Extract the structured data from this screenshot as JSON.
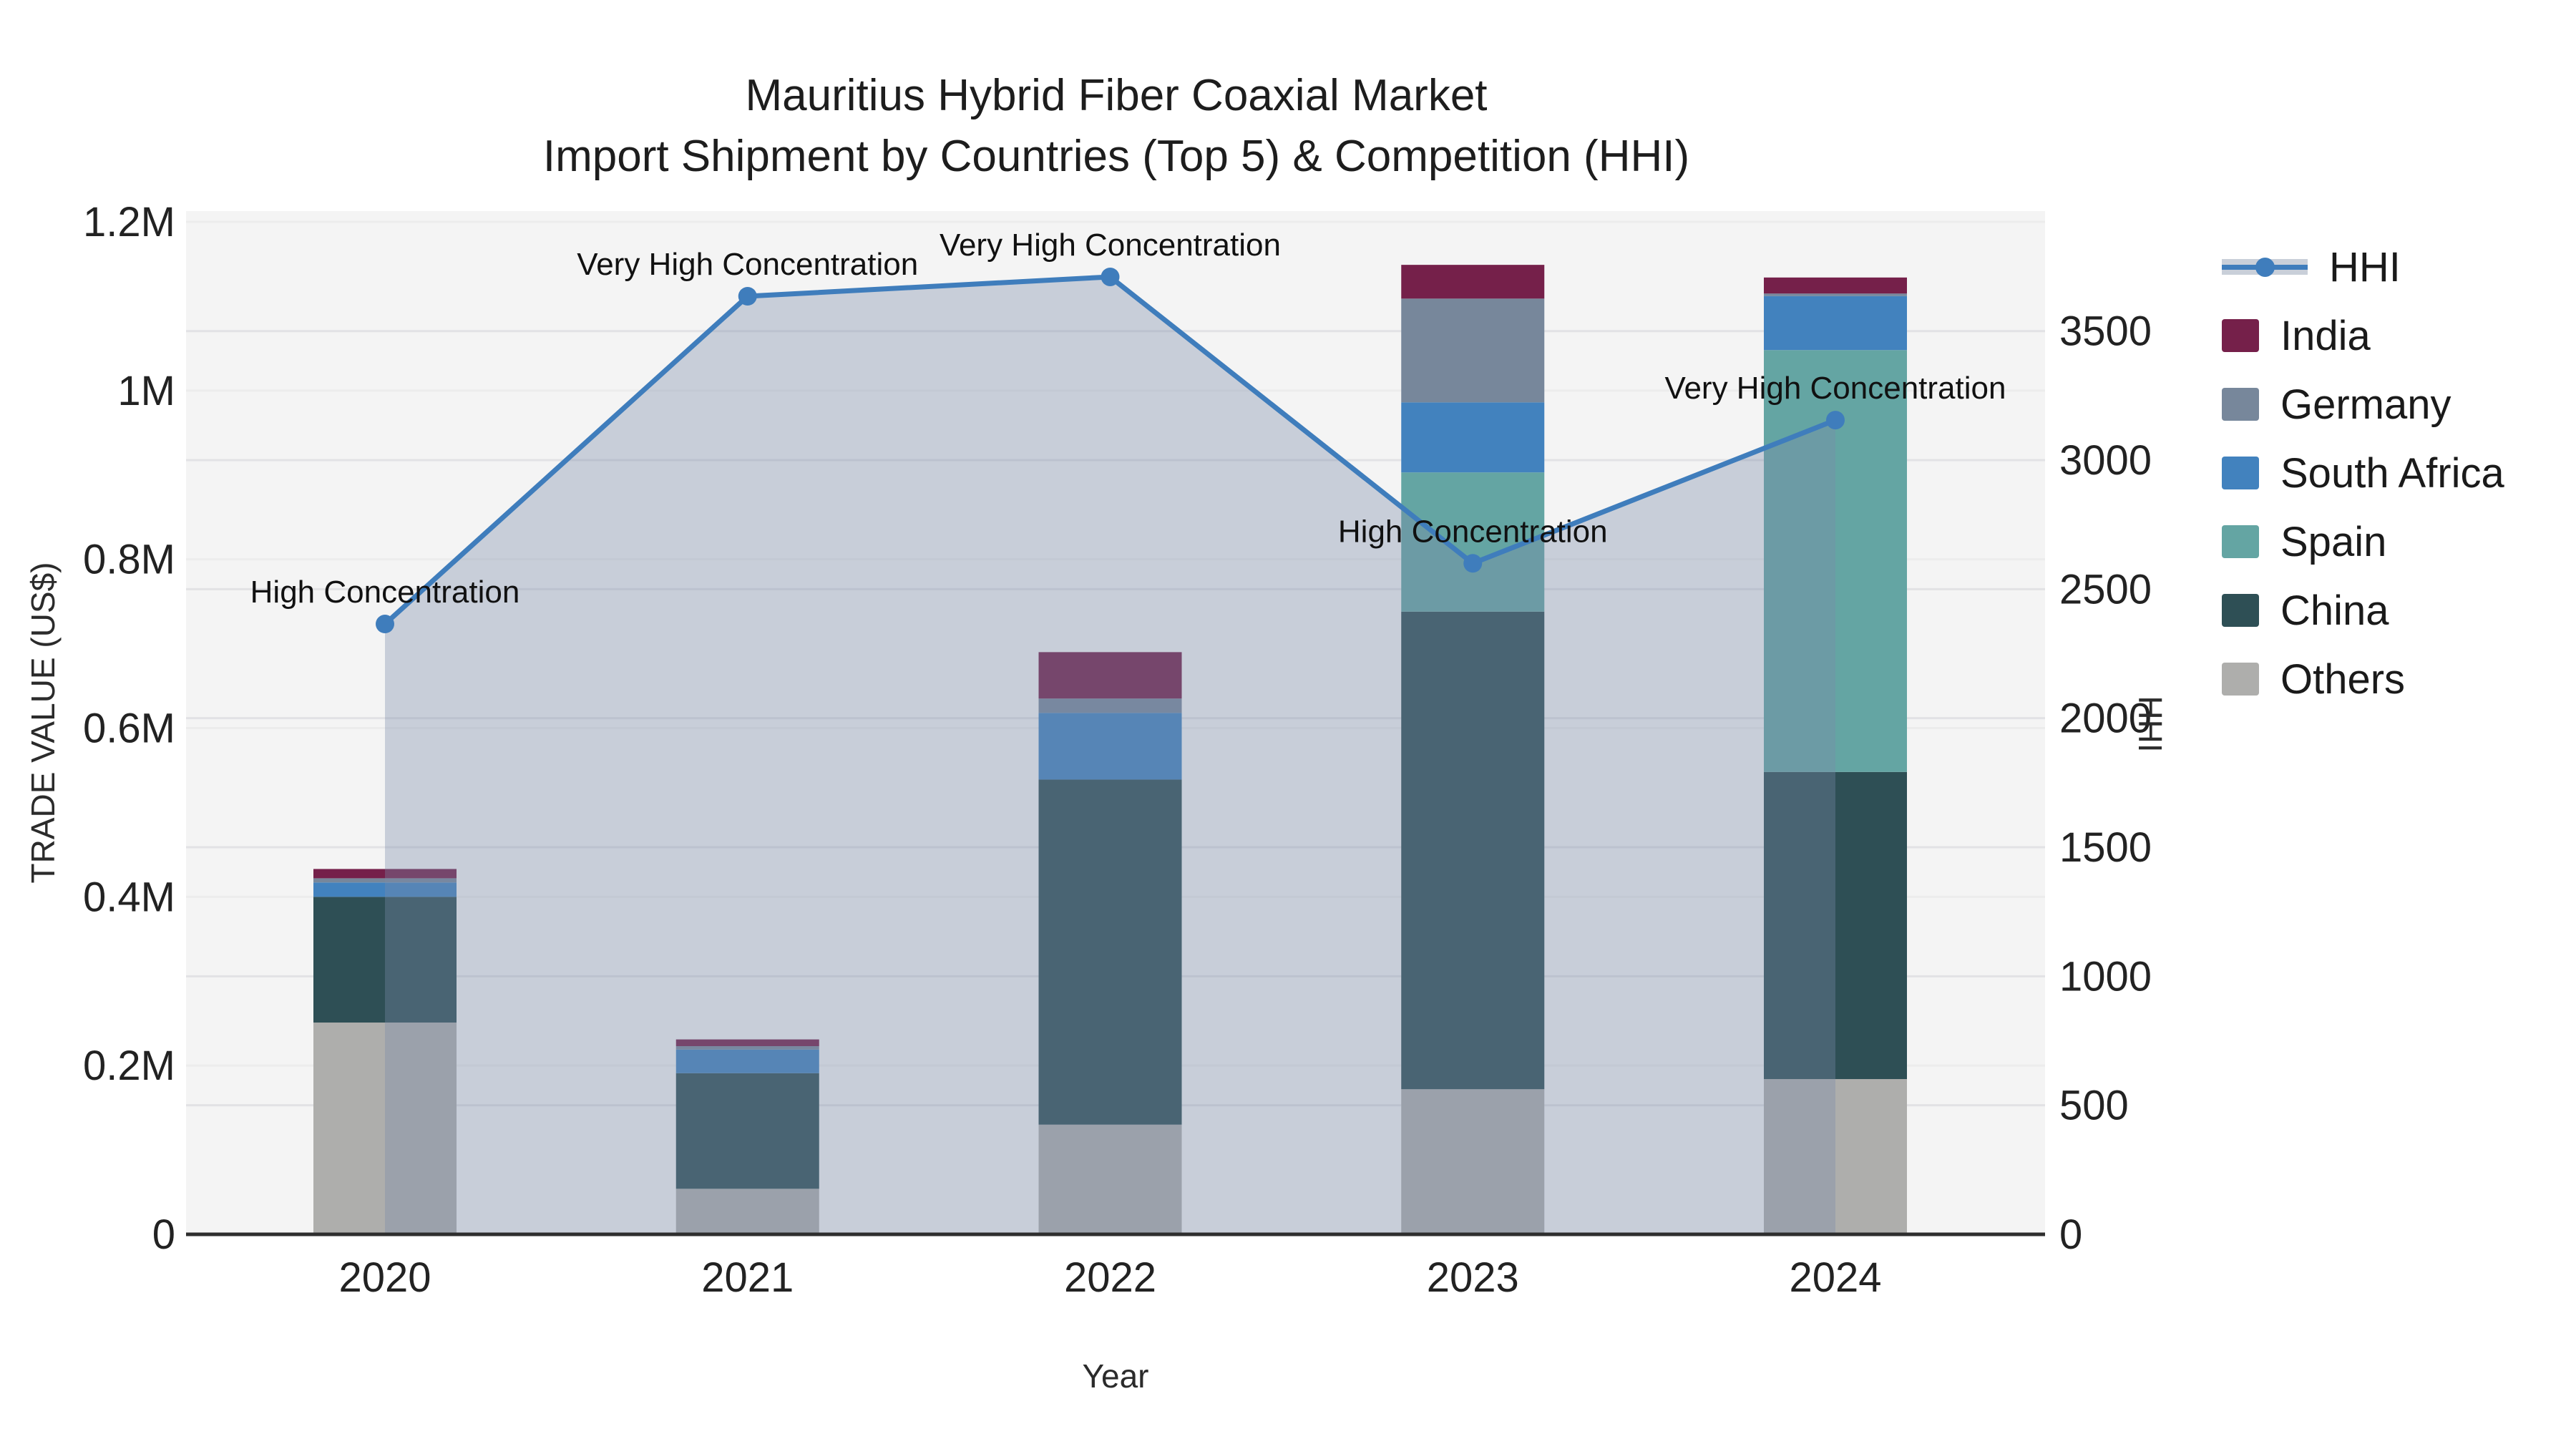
{
  "title": {
    "line1": "Mauritius Hybrid Fiber Coaxial Market",
    "line2": "Import Shipment by Countries (Top 5) & Competition (HHI)"
  },
  "axes": {
    "x_title": "Year",
    "y_left_title": "TRADE VALUE (US$)",
    "y_right_title": "HHI",
    "y_left_tick_labels": [
      "0",
      "0.2M",
      "0.4M",
      "0.6M",
      "0.8M",
      "1M",
      "1.2M"
    ],
    "y_right_tick_labels": [
      "0",
      "500",
      "1000",
      "1500",
      "2000",
      "2500",
      "3000",
      "3500"
    ]
  },
  "legend_items": [
    {
      "label": "HHI",
      "kind": "line"
    },
    {
      "label": "India",
      "kind": "swatch"
    },
    {
      "label": "Germany",
      "kind": "swatch"
    },
    {
      "label": "South Africa",
      "kind": "swatch"
    },
    {
      "label": "Spain",
      "kind": "swatch"
    },
    {
      "label": "China",
      "kind": "swatch"
    },
    {
      "label": "Others",
      "kind": "swatch"
    }
  ],
  "colors": {
    "India": "#75204A",
    "Germany": "#77879B",
    "South Africa": "#4282BE",
    "Spain": "#64A5A3",
    "China": "#2E4F55",
    "Others": "#AEAEAC",
    "HHI": "#3F7DBC",
    "hhi_area_fill": "rgba(122,139,170,0.36)",
    "plot_background": "#F4F4F4",
    "grid_left": "#ECECEC",
    "grid_right": "#E2E2E5",
    "axis_line": "#2E2E2E",
    "tick_text": "#222222",
    "annotation_text": "#111111"
  },
  "chart_data": {
    "type": "bar+line",
    "categories": [
      "2020",
      "2021",
      "2022",
      "2023",
      "2024"
    ],
    "bar_unit": "Million US$",
    "stack_order_bottom_to_top": [
      "Others",
      "China",
      "Spain",
      "South Africa",
      "Germany",
      "India"
    ],
    "series": [
      {
        "name": "Others",
        "values": [
          0.251,
          0.054,
          0.13,
          0.172,
          0.184
        ]
      },
      {
        "name": "China",
        "values": [
          0.149,
          0.137,
          0.409,
          0.566,
          0.364
        ]
      },
      {
        "name": "Spain",
        "values": [
          0.0,
          0.0,
          0.0,
          0.165,
          0.5
        ]
      },
      {
        "name": "South Africa",
        "values": [
          0.017,
          0.028,
          0.079,
          0.083,
          0.064
        ]
      },
      {
        "name": "Germany",
        "values": [
          0.005,
          0.004,
          0.017,
          0.123,
          0.003
        ]
      },
      {
        "name": "India",
        "values": [
          0.011,
          0.008,
          0.055,
          0.04,
          0.019
        ]
      }
    ],
    "hhi_line": {
      "name": "HHI",
      "axis": "right",
      "values": [
        2365,
        3635,
        3710,
        2600,
        3155
      ],
      "fill_to_zero": true
    },
    "annotations": [
      {
        "year": "2020",
        "text": "High Concentration"
      },
      {
        "year": "2021",
        "text": "Very High Concentration"
      },
      {
        "year": "2022",
        "text": "Very High Concentration"
      },
      {
        "year": "2023",
        "text": "High Concentration"
      },
      {
        "year": "2024",
        "text": "Very High Concentration"
      }
    ],
    "xlabel": "Year",
    "ylabel_left": "TRADE VALUE (US$)",
    "ylabel_right": "HHI",
    "y_left_ticks": [
      0,
      0.2,
      0.4,
      0.6,
      0.8,
      1.0,
      1.2
    ],
    "y_left_range": [
      0,
      1.2
    ],
    "y_right_ticks": [
      0,
      500,
      1000,
      1500,
      2000,
      2500,
      3000,
      3500
    ],
    "y_right_range": [
      0,
      3965
    ],
    "grid": true,
    "legend_position": "right"
  }
}
